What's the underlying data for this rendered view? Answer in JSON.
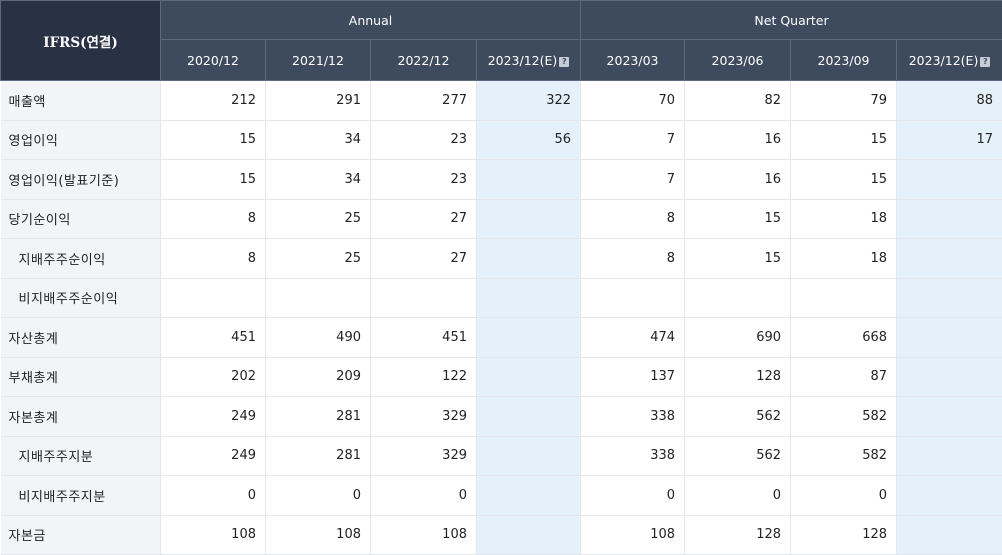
{
  "table": {
    "corner_label": "IFRS(연결)",
    "group_annual": "Annual",
    "group_quarter": "Net Quarter",
    "columns": [
      {
        "label": "2020/12",
        "estimate": false
      },
      {
        "label": "2021/12",
        "estimate": false
      },
      {
        "label": "2022/12",
        "estimate": false
      },
      {
        "label": "2023/12(E)",
        "estimate": true
      },
      {
        "label": "2023/03",
        "estimate": false
      },
      {
        "label": "2023/06",
        "estimate": false
      },
      {
        "label": "2023/09",
        "estimate": false
      },
      {
        "label": "2023/12(E)",
        "estimate": true
      }
    ],
    "estimate_icon": "question-help-icon",
    "rows": [
      {
        "label": "매출액",
        "indent": false,
        "values": [
          "212",
          "291",
          "277",
          "322",
          "70",
          "82",
          "79",
          "88"
        ]
      },
      {
        "label": "영업이익",
        "indent": false,
        "values": [
          "15",
          "34",
          "23",
          "56",
          "7",
          "16",
          "15",
          "17"
        ]
      },
      {
        "label": "영업이익(발표기준)",
        "indent": false,
        "values": [
          "15",
          "34",
          "23",
          "",
          "7",
          "16",
          "15",
          ""
        ]
      },
      {
        "label": "당기순이익",
        "indent": false,
        "values": [
          "8",
          "25",
          "27",
          "",
          "8",
          "15",
          "18",
          ""
        ]
      },
      {
        "label": "지배주주순이익",
        "indent": true,
        "values": [
          "8",
          "25",
          "27",
          "",
          "8",
          "15",
          "18",
          ""
        ]
      },
      {
        "label": "비지배주주순이익",
        "indent": true,
        "values": [
          "",
          "",
          "",
          "",
          "",
          "",
          "",
          ""
        ]
      },
      {
        "label": "자산총계",
        "indent": false,
        "values": [
          "451",
          "490",
          "451",
          "",
          "474",
          "690",
          "668",
          ""
        ]
      },
      {
        "label": "부채총계",
        "indent": false,
        "values": [
          "202",
          "209",
          "122",
          "",
          "137",
          "128",
          "87",
          ""
        ]
      },
      {
        "label": "자본총계",
        "indent": false,
        "values": [
          "249",
          "281",
          "329",
          "",
          "338",
          "562",
          "582",
          ""
        ]
      },
      {
        "label": "지배주주지분",
        "indent": true,
        "values": [
          "249",
          "281",
          "329",
          "",
          "338",
          "562",
          "582",
          ""
        ]
      },
      {
        "label": "비지배주주지분",
        "indent": true,
        "values": [
          "0",
          "0",
          "0",
          "",
          "0",
          "0",
          "0",
          ""
        ]
      },
      {
        "label": "자본금",
        "indent": false,
        "values": [
          "108",
          "108",
          "108",
          "",
          "108",
          "128",
          "128",
          ""
        ]
      }
    ]
  }
}
